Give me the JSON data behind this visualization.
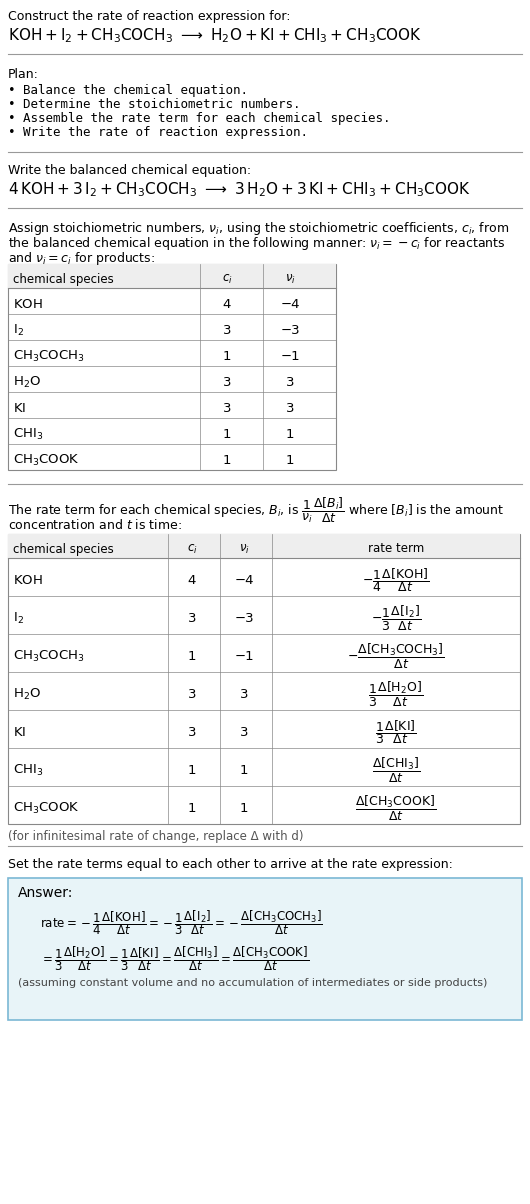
{
  "bg_color": "#ffffff",
  "title_line1": "Construct the rate of reaction expression for:",
  "plan_header": "Plan:",
  "plan_items": [
    "• Balance the chemical equation.",
    "• Determine the stoichiometric numbers.",
    "• Assemble the rate term for each chemical species.",
    "• Write the rate of reaction expression."
  ],
  "balanced_header": "Write the balanced chemical equation:",
  "set_equal_text": "Set the rate terms equal to each other to arrive at the rate expression:",
  "answer_box_color": "#e8f4f8",
  "answer_box_border": "#7bb8d4",
  "answer_label": "Answer:",
  "assuming_note": "(assuming constant volume and no accumulation of intermediates or side products)",
  "infinitesimal_note": "(for infinitesimal rate of change, replace Δ with d)",
  "table1_rows": [
    [
      "KOH",
      "4",
      "−4"
    ],
    [
      "I_2",
      "3",
      "−3"
    ],
    [
      "CH_3COCH_3",
      "1",
      "−1"
    ],
    [
      "H_2O",
      "3",
      "3"
    ],
    [
      "KI",
      "3",
      "3"
    ],
    [
      "CHI_3",
      "1",
      "1"
    ],
    [
      "CH_3COOK",
      "1",
      "1"
    ]
  ],
  "table2_rows": [
    [
      "KOH",
      "4",
      "−4",
      "koh"
    ],
    [
      "I_2",
      "3",
      "−3",
      "i2"
    ],
    [
      "CH_3COCH_3",
      "1",
      "−1",
      "ch3coch3"
    ],
    [
      "H_2O",
      "3",
      "3",
      "h2o"
    ],
    [
      "KI",
      "3",
      "3",
      "ki"
    ],
    [
      "CHI_3",
      "1",
      "1",
      "chi3"
    ],
    [
      "CH_3COOK",
      "1",
      "1",
      "ch3cook"
    ]
  ]
}
